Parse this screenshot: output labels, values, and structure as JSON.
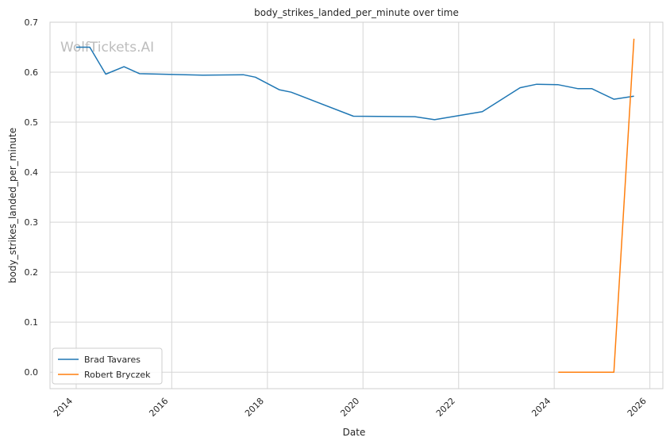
{
  "chart_data": {
    "type": "line",
    "title": "body_strikes_landed_per_minute over time",
    "xlabel": "Date",
    "ylabel": "body_strikes_landed_per_minute",
    "watermark": "WolfTickets.AI",
    "x_axis_kind": "date",
    "xlim": [
      "2013-06-15",
      "2026-04-10"
    ],
    "ylim": [
      -0.033,
      0.7
    ],
    "x_ticks": [
      "2014",
      "2016",
      "2018",
      "2020",
      "2022",
      "2024",
      "2026"
    ],
    "y_ticks": [
      "0.0",
      "0.1",
      "0.2",
      "0.3",
      "0.4",
      "0.5",
      "0.6",
      "0.7"
    ],
    "grid": true,
    "legend_position": "lower-left",
    "series": [
      {
        "name": "Brad Tavares",
        "color": "#1f77b4",
        "points": [
          {
            "x": "2014-01-01",
            "y": 0.65
          },
          {
            "x": "2014-04-15",
            "y": 0.65
          },
          {
            "x": "2014-08-15",
            "y": 0.596
          },
          {
            "x": "2015-01-01",
            "y": 0.611
          },
          {
            "x": "2015-05-01",
            "y": 0.597
          },
          {
            "x": "2016-09-01",
            "y": 0.594
          },
          {
            "x": "2017-07-01",
            "y": 0.595
          },
          {
            "x": "2017-10-01",
            "y": 0.59
          },
          {
            "x": "2018-04-01",
            "y": 0.565
          },
          {
            "x": "2018-07-01",
            "y": 0.56
          },
          {
            "x": "2019-10-20",
            "y": 0.512
          },
          {
            "x": "2021-02-01",
            "y": 0.511
          },
          {
            "x": "2021-07-01",
            "y": 0.505
          },
          {
            "x": "2022-07-01",
            "y": 0.521
          },
          {
            "x": "2023-04-15",
            "y": 0.569
          },
          {
            "x": "2023-08-20",
            "y": 0.576
          },
          {
            "x": "2024-02-01",
            "y": 0.575
          },
          {
            "x": "2024-07-01",
            "y": 0.567
          },
          {
            "x": "2024-10-15",
            "y": 0.567
          },
          {
            "x": "2025-04-01",
            "y": 0.546
          },
          {
            "x": "2025-09-01",
            "y": 0.552
          }
        ]
      },
      {
        "name": "Robert Bryczek",
        "color": "#ff7f0e",
        "points": [
          {
            "x": "2024-02-01",
            "y": 0.0
          },
          {
            "x": "2025-04-01",
            "y": 0.0
          },
          {
            "x": "2025-09-01",
            "y": 0.667
          }
        ]
      }
    ]
  }
}
